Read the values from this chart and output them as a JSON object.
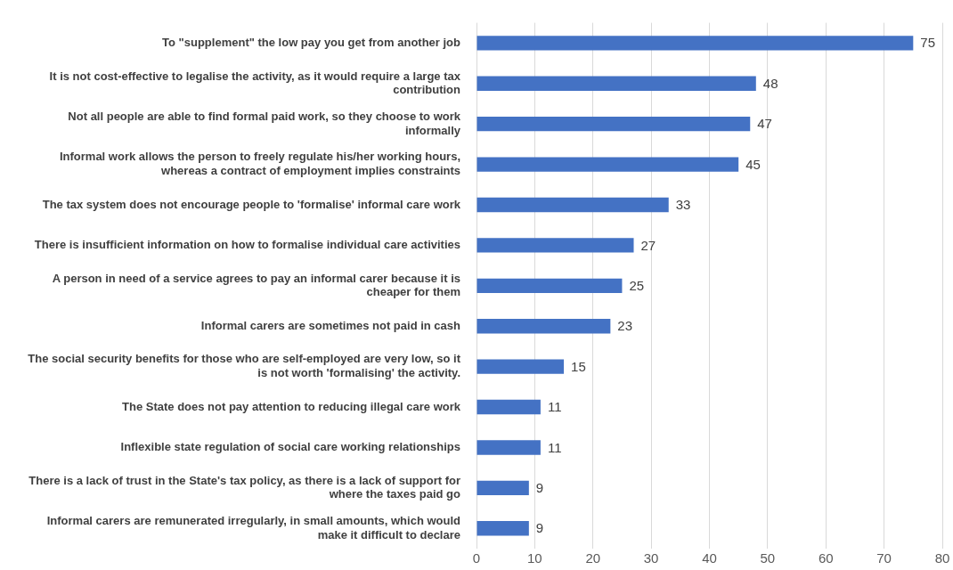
{
  "chart_data": {
    "type": "bar",
    "orientation": "horizontal",
    "categories": [
      "To \"supplement\" the low pay you get from another job",
      "It is not cost-effective to legalise the activity, as it would require a large tax contribution",
      "Not all people are able to find formal paid work, so they choose to work informally",
      "Informal work allows the person to freely regulate his/her working hours, whereas a contract of employment implies constraints",
      "The tax system does not encourage people to 'formalise' informal care work",
      "There is insufficient information on how to formalise individual care activities",
      "A person in need of a service agrees to pay an informal carer because it is cheaper for them",
      "Informal carers are sometimes not paid in cash",
      "The social security benefits for those who are self-employed are very low, so it is not worth 'formalising' the activity.",
      "The State does not pay attention to reducing illegal care work",
      "Inflexible state regulation of social care working relationships",
      "There is a lack of trust in the State's tax policy, as there is a lack of support for where the taxes paid go",
      "Informal carers are remunerated irregularly, in small amounts, which would make it difficult to declare"
    ],
    "values": [
      75,
      48,
      47,
      45,
      33,
      27,
      25,
      23,
      15,
      11,
      11,
      9,
      9
    ],
    "color": "#4472c4",
    "xlim": [
      0,
      80
    ],
    "xticks": [
      0,
      10,
      20,
      30,
      40,
      50,
      60,
      70,
      80
    ],
    "grid": "x",
    "data_labels": true
  }
}
